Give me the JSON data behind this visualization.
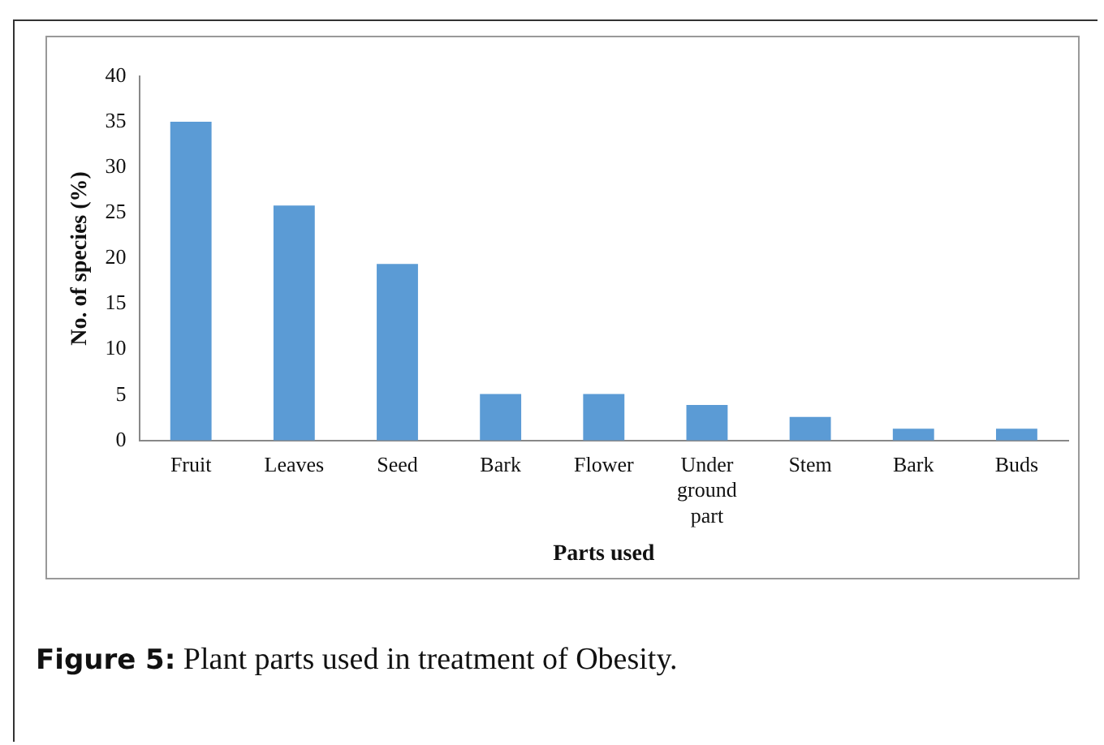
{
  "chart_data": {
    "type": "bar",
    "xlabel": "Parts used",
    "ylabel": "No. of species (%)",
    "categories": [
      "Fruit",
      "Leaves",
      "Seed",
      "Bark",
      "Flower",
      "Under ground part",
      "Stem",
      "Bark",
      "Buds"
    ],
    "values": [
      35,
      25.8,
      19.4,
      5.1,
      5.1,
      3.9,
      2.6,
      1.3,
      1.3
    ],
    "color": "#5b9bd5",
    "ylim": [
      0,
      40
    ],
    "yticks": [
      0,
      5,
      10,
      15,
      20,
      25,
      30,
      35,
      40
    ],
    "grid": false,
    "legend": false,
    "annotations": [
      "Figure 5: Plant parts used in treatment of Obesity."
    ]
  }
}
